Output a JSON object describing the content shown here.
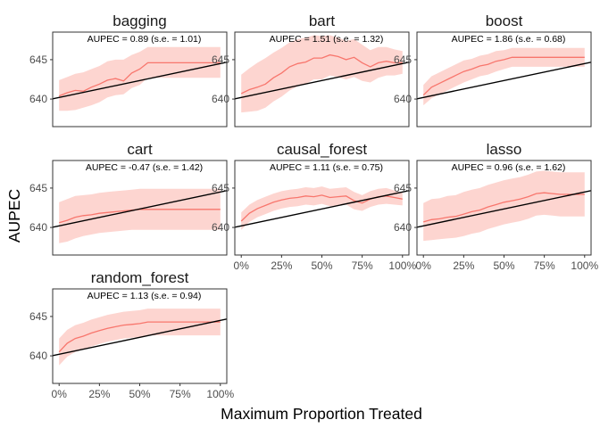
{
  "figure": {
    "xlabel": "Maximum Proportion Treated",
    "ylabel": "AUPEC"
  },
  "colors": {
    "band": "#fdd5d0",
    "curve": "#f8766d",
    "reference_line": "#000000",
    "panel_border": "#333333",
    "tick_text": "#4d4d4d"
  },
  "chart_data": [
    {
      "type": "line",
      "title": "bagging",
      "annotation": "AUPEC = 0.89 (s.e. = 1.01)",
      "x_ticks": [
        "0%",
        "25%",
        "50%",
        "75%",
        "100%"
      ],
      "y_ticks": [
        "640",
        "645"
      ],
      "xlim": [
        0,
        1
      ],
      "ylim": [
        636.5,
        648.5
      ],
      "reference_line": {
        "x": [
          0,
          1
        ],
        "y": [
          640.2,
          644.5
        ]
      },
      "series": [
        {
          "x": [
            0,
            0.05,
            0.1,
            0.15,
            0.2,
            0.25,
            0.3,
            0.35,
            0.4,
            0.45,
            0.5,
            0.55,
            0.6,
            0.65,
            0.7,
            0.75,
            0.8,
            0.85,
            0.9,
            0.95,
            1.0
          ],
          "y": [
            640.4,
            640.8,
            641.1,
            641.0,
            641.5,
            641.9,
            642.4,
            642.6,
            642.3,
            643.3,
            643.8,
            644.6,
            644.6,
            644.6,
            644.6,
            644.6,
            644.6,
            644.6,
            644.6,
            644.6,
            644.6
          ],
          "lower": [
            638.5,
            638.5,
            638.6,
            638.9,
            639.2,
            639.6,
            640.2,
            640.5,
            640.6,
            641.4,
            641.8,
            642.7,
            642.7,
            642.7,
            642.7,
            642.7,
            642.7,
            642.7,
            642.7,
            642.7,
            642.7
          ],
          "upper": [
            642.4,
            642.8,
            643.2,
            643.4,
            643.8,
            644.2,
            644.8,
            645.0,
            645.0,
            645.6,
            646.0,
            646.6,
            646.6,
            646.6,
            646.6,
            646.6,
            646.6,
            646.6,
            646.6,
            646.6,
            646.6
          ]
        }
      ]
    },
    {
      "type": "line",
      "title": "bart",
      "annotation": "AUPEC = 1.51 (s.e. = 1.32)",
      "x_ticks": [
        "0%",
        "25%",
        "50%",
        "75%",
        "100%"
      ],
      "y_ticks": [
        "640",
        "645"
      ],
      "xlim": [
        0,
        1
      ],
      "ylim": [
        636.5,
        648.5
      ],
      "reference_line": {
        "x": [
          0,
          1
        ],
        "y": [
          640.2,
          644.5
        ]
      },
      "series": [
        {
          "x": [
            0,
            0.05,
            0.1,
            0.15,
            0.2,
            0.25,
            0.3,
            0.35,
            0.4,
            0.45,
            0.5,
            0.55,
            0.6,
            0.65,
            0.7,
            0.75,
            0.8,
            0.85,
            0.9,
            0.95,
            1.0
          ],
          "y": [
            640.7,
            641.2,
            641.5,
            641.9,
            642.7,
            643.3,
            644.1,
            644.5,
            644.7,
            645.2,
            645.2,
            645.6,
            645.4,
            645.0,
            645.3,
            644.6,
            644.1,
            644.6,
            644.8,
            644.6,
            644.6
          ],
          "lower": [
            638.3,
            638.4,
            638.5,
            638.9,
            639.7,
            640.3,
            641.1,
            641.6,
            641.9,
            642.5,
            642.5,
            643.0,
            642.8,
            642.5,
            642.8,
            642.3,
            642.1,
            642.7,
            643.0,
            643.0,
            643.2
          ],
          "upper": [
            643.1,
            643.9,
            644.6,
            645.2,
            645.9,
            646.5,
            647.2,
            647.6,
            647.8,
            648.1,
            648.0,
            648.1,
            647.8,
            647.4,
            647.6,
            646.9,
            646.2,
            646.6,
            646.6,
            646.3,
            646.1
          ]
        }
      ]
    },
    {
      "type": "line",
      "title": "boost",
      "annotation": "AUPEC = 1.86 (s.e. = 0.68)",
      "x_ticks": [
        "0%",
        "25%",
        "50%",
        "75%",
        "100%"
      ],
      "y_ticks": [
        "640",
        "645"
      ],
      "xlim": [
        0,
        1
      ],
      "ylim": [
        636.5,
        648.5
      ],
      "reference_line": {
        "x": [
          0,
          1
        ],
        "y": [
          640.2,
          644.5
        ]
      },
      "series": [
        {
          "x": [
            0,
            0.05,
            0.1,
            0.15,
            0.2,
            0.25,
            0.3,
            0.35,
            0.4,
            0.45,
            0.5,
            0.55,
            0.6,
            0.65,
            0.7,
            0.75,
            0.8,
            0.85,
            0.9,
            0.95,
            1.0
          ],
          "y": [
            640.5,
            641.5,
            642.0,
            642.5,
            643.0,
            643.5,
            643.8,
            644.2,
            644.4,
            644.8,
            645.0,
            645.3,
            645.3,
            645.3,
            645.3,
            645.3,
            645.3,
            645.3,
            645.3,
            645.3,
            645.3
          ],
          "lower": [
            639.2,
            640.1,
            640.6,
            641.1,
            641.6,
            642.1,
            642.5,
            642.9,
            643.1,
            643.5,
            643.8,
            644.1,
            644.1,
            644.1,
            644.1,
            644.1,
            644.1,
            644.1,
            644.1,
            644.1,
            644.1
          ],
          "upper": [
            641.8,
            642.9,
            643.4,
            643.9,
            644.4,
            644.9,
            645.1,
            645.5,
            645.7,
            646.1,
            646.2,
            646.5,
            646.5,
            646.5,
            646.5,
            646.5,
            646.5,
            646.5,
            646.5,
            646.5,
            646.5
          ]
        }
      ]
    },
    {
      "type": "line",
      "title": "cart",
      "annotation": "AUPEC = -0.47 (s.e. = 1.42)",
      "x_ticks": [
        "0%",
        "25%",
        "50%",
        "75%",
        "100%"
      ],
      "y_ticks": [
        "640",
        "645"
      ],
      "xlim": [
        0,
        1
      ],
      "ylim": [
        636.5,
        648.5
      ],
      "reference_line": {
        "x": [
          0,
          1
        ],
        "y": [
          640.2,
          644.5
        ]
      },
      "series": [
        {
          "x": [
            0,
            0.05,
            0.1,
            0.15,
            0.2,
            0.25,
            0.3,
            0.35,
            0.4,
            0.45,
            0.5,
            0.55,
            0.6,
            0.65,
            0.7,
            0.75,
            0.8,
            0.85,
            0.9,
            0.95,
            1.0
          ],
          "y": [
            640.6,
            640.9,
            641.3,
            641.5,
            641.6,
            641.8,
            641.9,
            642.0,
            642.1,
            642.2,
            642.3,
            642.3,
            642.3,
            642.3,
            642.3,
            642.3,
            642.3,
            642.3,
            642.3,
            642.3,
            642.3
          ],
          "lower": [
            638.0,
            638.2,
            638.6,
            638.9,
            639.1,
            639.3,
            639.4,
            639.5,
            639.6,
            639.7,
            639.7,
            639.7,
            639.7,
            639.7,
            639.7,
            639.7,
            639.7,
            639.7,
            639.7,
            639.7,
            639.7
          ],
          "upper": [
            643.2,
            643.6,
            644.0,
            644.1,
            644.2,
            644.4,
            644.5,
            644.6,
            644.7,
            644.8,
            644.9,
            644.9,
            644.9,
            644.9,
            644.9,
            644.9,
            644.9,
            644.9,
            644.9,
            644.9,
            644.9
          ]
        }
      ]
    },
    {
      "type": "line",
      "title": "causal_forest",
      "annotation": "AUPEC = 1.11 (s.e. = 0.75)",
      "x_ticks": [
        "0%",
        "25%",
        "50%",
        "75%",
        "100%"
      ],
      "y_ticks": [
        "640",
        "645"
      ],
      "xlim": [
        0,
        1
      ],
      "ylim": [
        636.5,
        648.5
      ],
      "reference_line": {
        "x": [
          0,
          1
        ],
        "y": [
          640.2,
          644.5
        ]
      },
      "series": [
        {
          "x": [
            0,
            0.05,
            0.1,
            0.15,
            0.2,
            0.25,
            0.3,
            0.35,
            0.4,
            0.45,
            0.5,
            0.55,
            0.6,
            0.65,
            0.7,
            0.75,
            0.8,
            0.85,
            0.9,
            0.95,
            1.0
          ],
          "y": [
            640.8,
            641.8,
            642.4,
            642.8,
            643.2,
            643.5,
            643.7,
            643.8,
            644.0,
            643.9,
            644.1,
            643.8,
            643.9,
            644.0,
            643.4,
            643.1,
            643.6,
            643.9,
            644.0,
            643.8,
            643.6
          ],
          "lower": [
            639.7,
            640.7,
            641.3,
            641.7,
            642.1,
            642.4,
            642.6,
            642.7,
            642.9,
            642.8,
            643.0,
            642.7,
            642.8,
            642.9,
            642.3,
            642.1,
            642.6,
            642.9,
            643.0,
            642.9,
            642.8
          ],
          "upper": [
            641.9,
            642.9,
            643.5,
            643.9,
            644.3,
            644.6,
            644.8,
            644.9,
            645.1,
            645.0,
            645.2,
            644.9,
            645.0,
            645.1,
            644.5,
            644.1,
            644.6,
            644.9,
            645.0,
            644.7,
            644.4
          ]
        }
      ]
    },
    {
      "type": "line",
      "title": "lasso",
      "annotation": "AUPEC = 0.96 (s.e. = 1.62)",
      "x_ticks": [
        "0%",
        "25%",
        "50%",
        "75%",
        "100%"
      ],
      "y_ticks": [
        "640",
        "645"
      ],
      "xlim": [
        0,
        1
      ],
      "ylim": [
        636.5,
        648.5
      ],
      "reference_line": {
        "x": [
          0,
          1
        ],
        "y": [
          640.2,
          644.5
        ]
      },
      "series": [
        {
          "x": [
            0,
            0.05,
            0.1,
            0.15,
            0.2,
            0.25,
            0.3,
            0.35,
            0.4,
            0.45,
            0.5,
            0.55,
            0.6,
            0.65,
            0.7,
            0.75,
            0.8,
            0.85,
            0.9,
            0.95,
            1.0
          ],
          "y": [
            640.7,
            641.0,
            641.1,
            641.3,
            641.4,
            641.7,
            642.0,
            642.2,
            642.6,
            642.9,
            643.2,
            643.4,
            643.6,
            643.9,
            644.3,
            644.4,
            644.3,
            644.2,
            644.2,
            644.2,
            644.2
          ],
          "lower": [
            638.3,
            638.4,
            638.5,
            638.6,
            638.7,
            638.9,
            639.2,
            639.4,
            639.8,
            640.1,
            640.4,
            640.6,
            640.8,
            641.1,
            641.5,
            641.6,
            641.5,
            641.4,
            641.4,
            641.4,
            641.4
          ],
          "upper": [
            643.1,
            643.6,
            643.7,
            644.0,
            644.1,
            644.5,
            644.8,
            645.0,
            645.4,
            645.7,
            646.0,
            646.2,
            646.4,
            646.7,
            647.1,
            647.2,
            647.1,
            647.0,
            647.0,
            647.0,
            647.0
          ]
        }
      ]
    },
    {
      "type": "line",
      "title": "random_forest",
      "annotation": "AUPEC = 1.13 (s.e. = 0.94)",
      "x_ticks": [
        "0%",
        "25%",
        "50%",
        "75%",
        "100%"
      ],
      "y_ticks": [
        "640",
        "645"
      ],
      "xlim": [
        0,
        1
      ],
      "ylim": [
        636.5,
        648.5
      ],
      "reference_line": {
        "x": [
          0,
          1
        ],
        "y": [
          640.2,
          644.5
        ]
      },
      "series": [
        {
          "x": [
            0,
            0.05,
            0.1,
            0.15,
            0.2,
            0.25,
            0.3,
            0.35,
            0.4,
            0.45,
            0.5,
            0.55,
            0.6,
            0.65,
            0.7,
            0.75,
            0.8,
            0.85,
            0.9,
            0.95,
            1.0
          ],
          "y": [
            640.5,
            641.6,
            642.2,
            642.5,
            642.9,
            643.2,
            643.5,
            643.7,
            643.9,
            644.0,
            644.1,
            644.3,
            644.3,
            644.3,
            644.3,
            644.3,
            644.3,
            644.3,
            644.3,
            644.3,
            644.3
          ],
          "lower": [
            638.8,
            639.9,
            640.5,
            640.8,
            641.2,
            641.5,
            641.8,
            642.0,
            642.2,
            642.3,
            642.4,
            642.6,
            642.6,
            642.6,
            642.6,
            642.6,
            642.6,
            642.6,
            642.6,
            642.6,
            642.6
          ],
          "upper": [
            642.2,
            643.3,
            643.9,
            644.2,
            644.6,
            644.9,
            645.2,
            645.4,
            645.6,
            645.7,
            645.8,
            646.0,
            646.0,
            646.0,
            646.0,
            646.0,
            646.0,
            646.0,
            646.0,
            646.0,
            646.0
          ]
        }
      ]
    }
  ]
}
